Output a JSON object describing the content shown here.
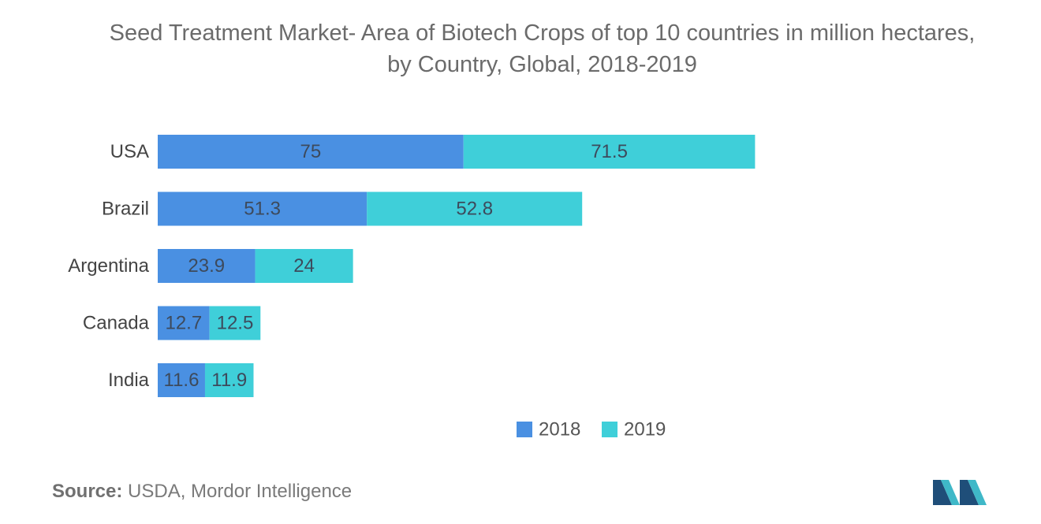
{
  "title_line1": "Seed Treatment Market- Area of Biotech Crops of top 10 countries in million hectares,",
  "title_line2": "by Country, Global, 2018-2019",
  "source_label": "Source:",
  "source_text": "USDA, Mordor Intelligence",
  "colors": {
    "series_2018": "#4a90e2",
    "series_2019": "#3fcfd9",
    "label_text": "#444444",
    "bar_label_text": "#3d4a5c"
  },
  "chart_data": {
    "type": "bar",
    "orientation": "horizontal",
    "stacked": true,
    "categories": [
      "USA",
      "Brazil",
      "Argentina",
      "Canada",
      "India"
    ],
    "series": [
      {
        "name": "2018",
        "values": [
          75,
          51.3,
          23.9,
          12.7,
          11.6
        ]
      },
      {
        "name": "2019",
        "values": [
          71.5,
          52.8,
          24,
          12.5,
          11.9
        ]
      }
    ],
    "data_labels": [
      [
        "75",
        "51.3",
        "23.9",
        "12.7",
        "11.6"
      ],
      [
        "71.5",
        "52.8",
        "24",
        "12.5",
        "11.9"
      ]
    ],
    "title": "Seed Treatment Market- Area of Biotech Crops of top 10 countries in million hectares, by Country, Global, 2018-2019",
    "xlabel": "",
    "ylabel": "",
    "grid": false,
    "legend_position": "bottom"
  }
}
